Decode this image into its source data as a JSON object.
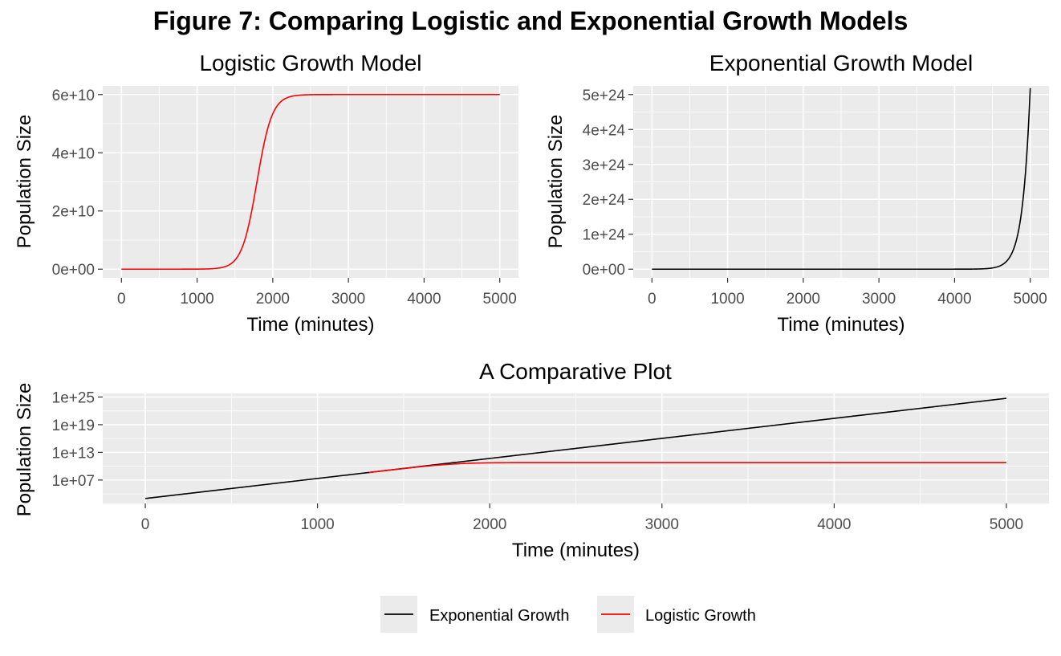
{
  "figure": {
    "title": "Figure 7: Comparing Logistic and Exponential Growth Models"
  },
  "chart_data": [
    {
      "type": "line",
      "title": "Logistic Growth Model",
      "xlabel": "Time (minutes)",
      "ylabel": "Population Size",
      "xlim": [
        0,
        5000
      ],
      "ylim": [
        0,
        60000000000
      ],
      "x_ticks": [
        0,
        1000,
        2000,
        3000,
        4000,
        5000
      ],
      "x_tick_labels": [
        "0",
        "1000",
        "2000",
        "3000",
        "4000",
        "5000"
      ],
      "y_ticks": [
        0,
        20000000000,
        40000000000,
        60000000000
      ],
      "y_tick_labels": [
        "0e+00",
        "2e+10",
        "4e+10",
        "6e+10"
      ],
      "grid": true,
      "series": [
        {
          "color": "#ff0000",
          "model": "logistic",
          "N0": 1000,
          "K": 60000000000,
          "r": 0.01,
          "x_range": [
            0,
            5000
          ]
        }
      ]
    },
    {
      "type": "line",
      "title": "Exponential Growth Model",
      "xlabel": "Time (minutes)",
      "ylabel": "Population Size",
      "xlim": [
        0,
        5000
      ],
      "ylim": [
        0,
        5e+24
      ],
      "x_ticks": [
        0,
        1000,
        2000,
        3000,
        4000,
        5000
      ],
      "x_tick_labels": [
        "0",
        "1000",
        "2000",
        "3000",
        "4000",
        "5000"
      ],
      "y_ticks": [
        0,
        1e+24,
        2e+24,
        3e+24,
        4e+24,
        5e+24
      ],
      "y_tick_labels": [
        "0e+00",
        "1e+24",
        "2e+24",
        "3e+24",
        "4e+24",
        "5e+24"
      ],
      "grid": true,
      "series": [
        {
          "color": "#000000",
          "model": "exponential",
          "N0": 1000,
          "r": 0.01,
          "x_range": [
            0,
            5000
          ]
        }
      ]
    },
    {
      "type": "line",
      "title": "A Comparative Plot",
      "xlabel": "Time (minutes)",
      "ylabel": "Population Size",
      "y_scale": "log10",
      "xlim": [
        0,
        5000
      ],
      "ylim": [
        1000,
        5e+24
      ],
      "x_ticks": [
        0,
        1000,
        2000,
        3000,
        4000,
        5000
      ],
      "x_tick_labels": [
        "0",
        "1000",
        "2000",
        "3000",
        "4000",
        "5000"
      ],
      "y_ticks": [
        10000000.0,
        10000000000000.0,
        1e+19,
        1e+25
      ],
      "y_tick_labels": [
        "1e+07",
        "1e+13",
        "1e+19",
        "1e+25"
      ],
      "grid": true,
      "legend_position": "bottom",
      "series": [
        {
          "name": "Exponential Growth",
          "color": "#000000",
          "model": "exponential",
          "N0": 1000,
          "r": 0.01,
          "x_range": [
            0,
            5000
          ]
        },
        {
          "name": "Logistic Growth",
          "color": "#ff0000",
          "model": "logistic",
          "N0": 1000,
          "K": 60000000000,
          "r": 0.01,
          "x_range": [
            1300,
            5000
          ]
        }
      ]
    }
  ]
}
